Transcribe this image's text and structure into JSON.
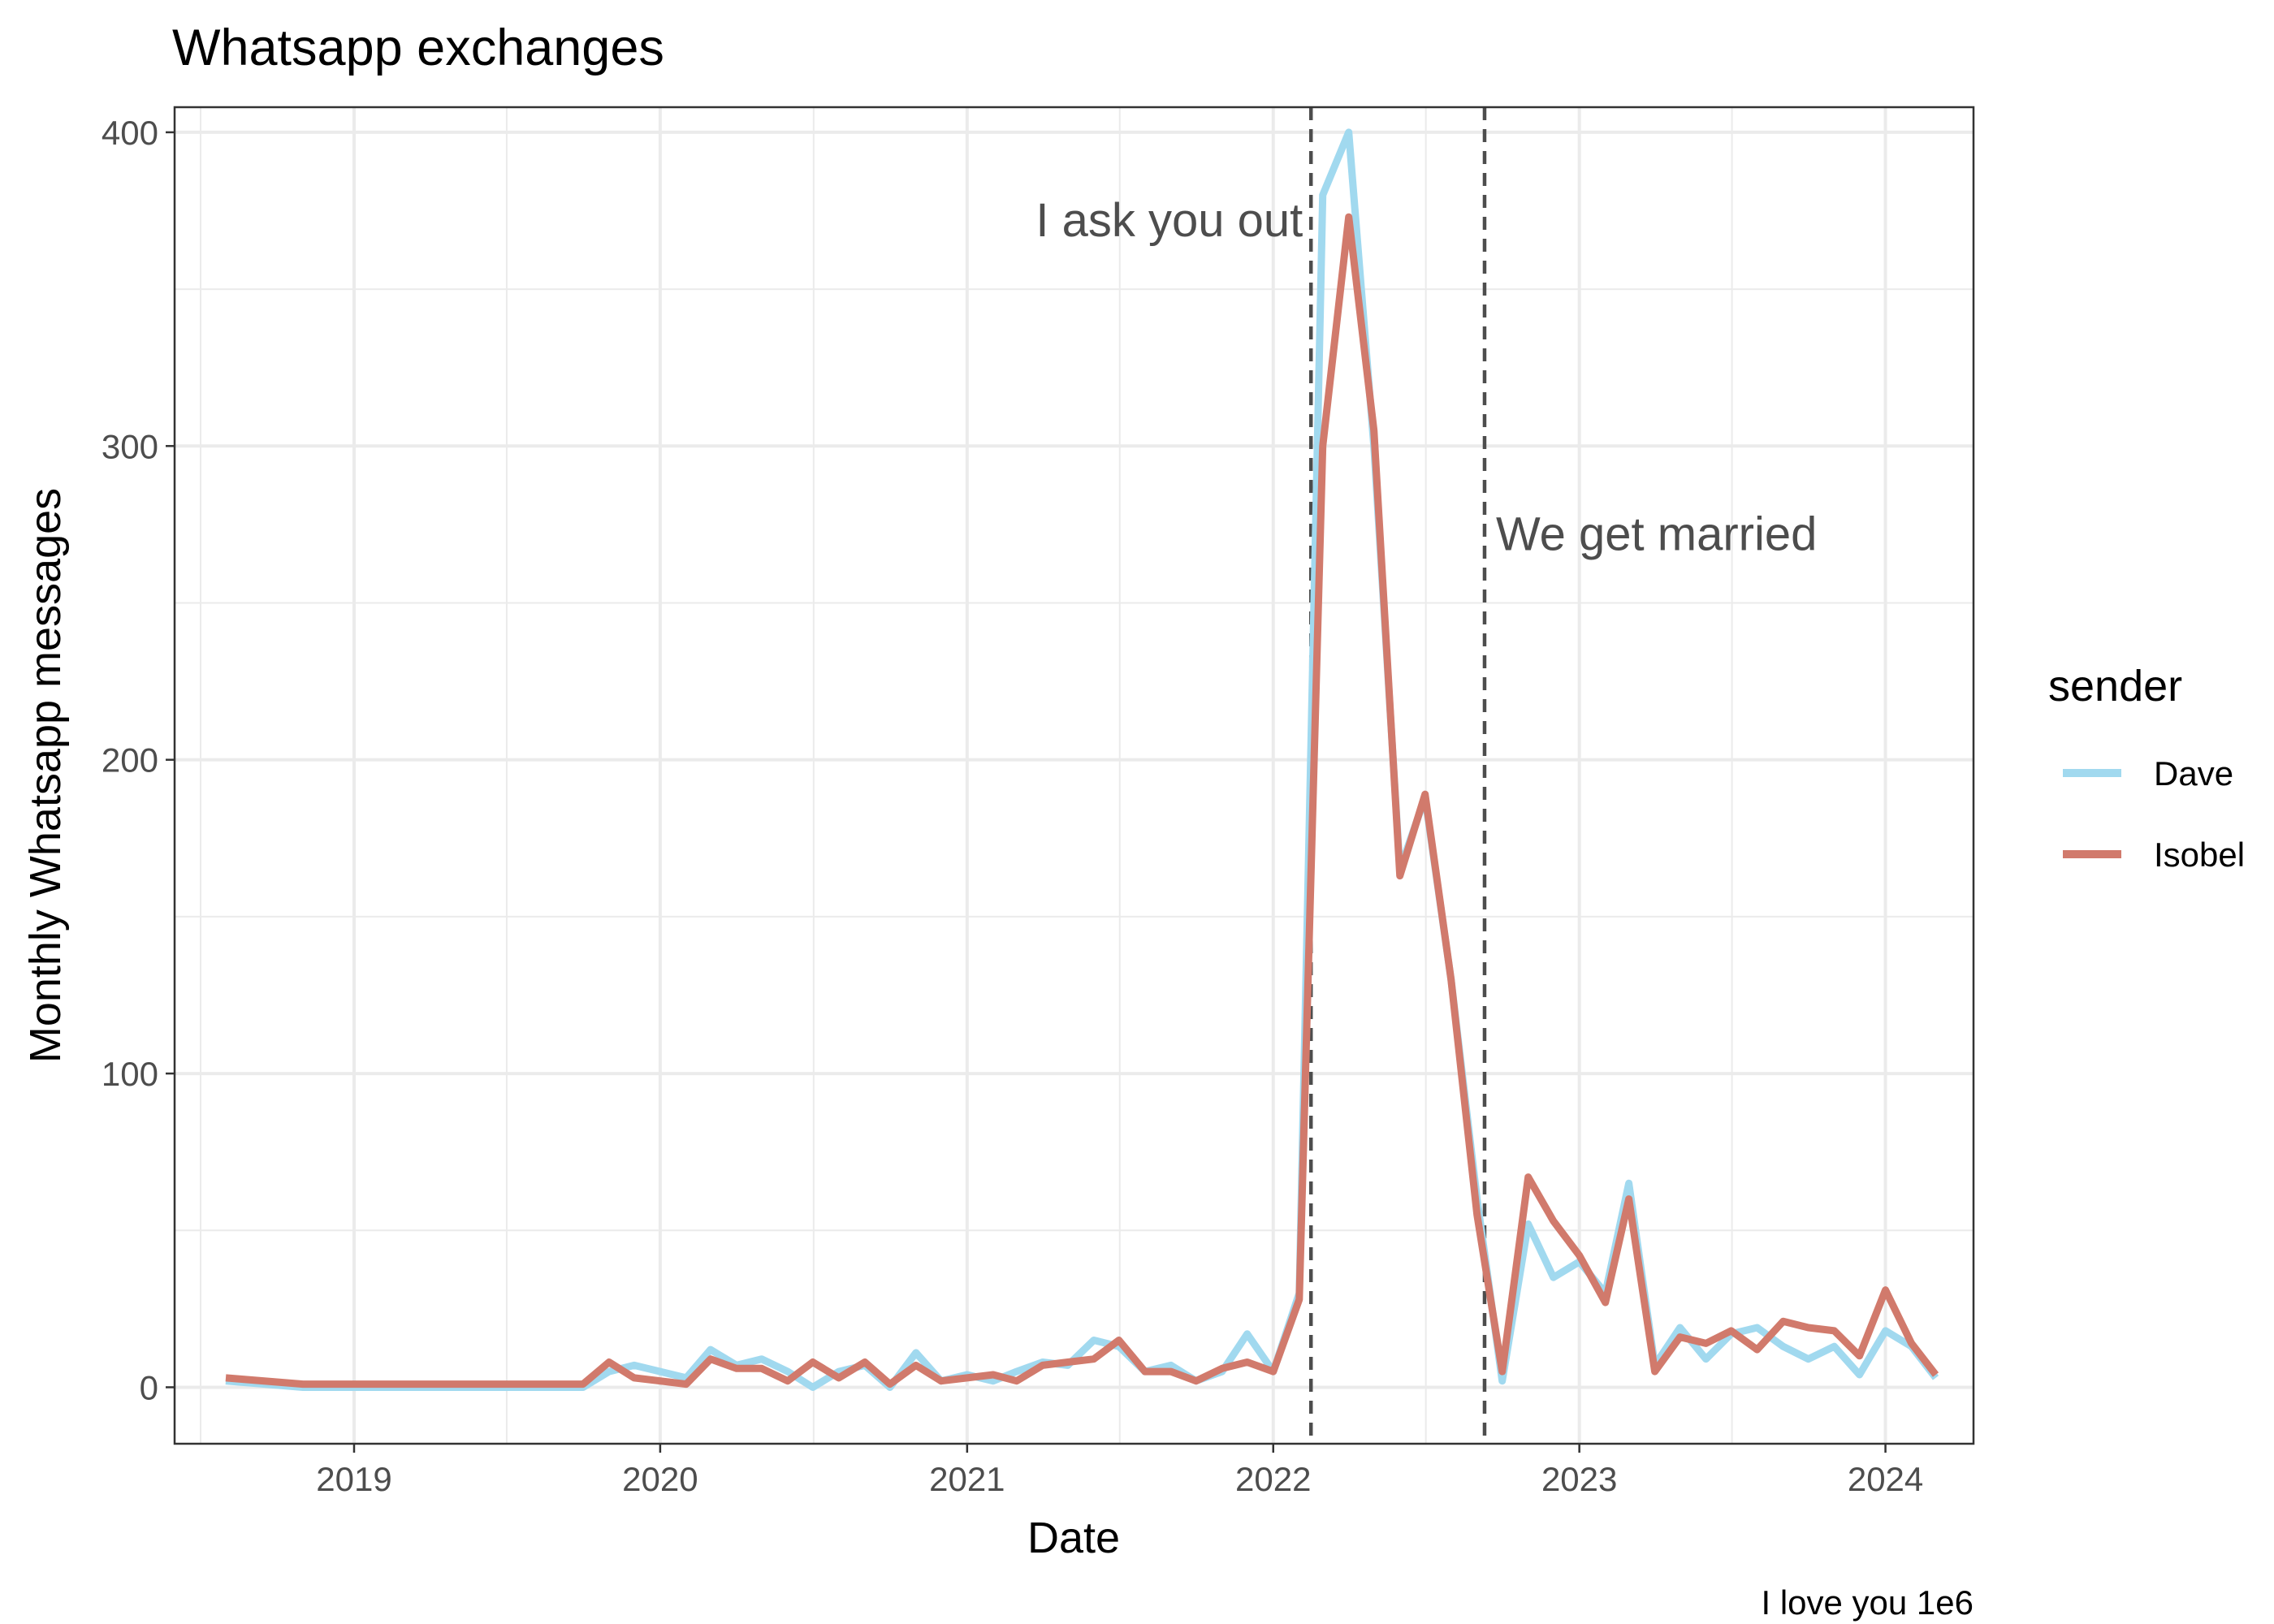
{
  "chart_data": {
    "type": "line",
    "title": "Whatsapp exchanges",
    "xlabel": "Date",
    "ylabel": "Monthly Whatsapp messages",
    "caption": "I love you 1e6",
    "xlim": [
      "2018-06-01",
      "2024-04-15"
    ],
    "ylim": [
      -18,
      408
    ],
    "x_ticks": [
      "2019",
      "2020",
      "2021",
      "2022",
      "2023",
      "2024"
    ],
    "y_ticks": [
      "0",
      "100",
      "200",
      "300",
      "400"
    ],
    "grid": true,
    "legend": {
      "title": "sender",
      "position": "right"
    },
    "x": [
      "2018-08-01",
      "2018-11-01",
      "2019-02-01",
      "2019-05-01",
      "2019-08-01",
      "2019-10-01",
      "2019-11-01",
      "2019-12-01",
      "2020-01-01",
      "2020-02-01",
      "2020-03-01",
      "2020-04-01",
      "2020-05-01",
      "2020-06-01",
      "2020-07-01",
      "2020-08-01",
      "2020-09-01",
      "2020-10-01",
      "2020-11-01",
      "2020-12-01",
      "2021-01-01",
      "2021-02-01",
      "2021-03-01",
      "2021-04-01",
      "2021-05-01",
      "2021-06-01",
      "2021-07-01",
      "2021-08-01",
      "2021-09-01",
      "2021-10-01",
      "2021-11-01",
      "2021-12-01",
      "2022-01-01",
      "2022-02-01",
      "2022-03-01",
      "2022-04-01",
      "2022-05-01",
      "2022-06-01",
      "2022-07-01",
      "2022-08-01",
      "2022-09-01",
      "2022-10-01",
      "2022-11-01",
      "2022-12-01",
      "2023-01-01",
      "2023-02-01",
      "2023-03-01",
      "2023-04-01",
      "2023-05-01",
      "2023-06-01",
      "2023-07-01",
      "2023-08-01",
      "2023-09-01",
      "2023-10-01",
      "2023-11-01",
      "2023-12-01",
      "2024-01-01",
      "2024-02-01",
      "2024-03-01"
    ],
    "series": [
      {
        "name": "Dave",
        "color": "#a1d9ef",
        "values": [
          2,
          0,
          0,
          0,
          0,
          0,
          5,
          7,
          5,
          3,
          12,
          7,
          9,
          5,
          0,
          5,
          7,
          0,
          11,
          2,
          4,
          2,
          5,
          8,
          7,
          15,
          13,
          5,
          7,
          2,
          5,
          17,
          5,
          30,
          380,
          400,
          300,
          165,
          188,
          130,
          60,
          2,
          52,
          35,
          40,
          30,
          65,
          7,
          19,
          9,
          17,
          19,
          13,
          9,
          13,
          4,
          18,
          13,
          3
        ]
      },
      {
        "name": "Isobel",
        "color": "#d17a6c",
        "values": [
          3,
          1,
          1,
          1,
          1,
          1,
          8,
          3,
          2,
          1,
          9,
          6,
          6,
          2,
          8,
          3,
          8,
          1,
          7,
          2,
          3,
          4,
          2,
          7,
          8,
          9,
          15,
          5,
          5,
          2,
          6,
          8,
          5,
          28,
          300,
          373,
          305,
          163,
          189,
          130,
          55,
          5,
          67,
          53,
          42,
          27,
          60,
          5,
          16,
          14,
          18,
          12,
          21,
          19,
          18,
          10,
          31,
          14,
          4
        ]
      }
    ],
    "vlines": [
      {
        "x": "2022-02-15",
        "label": "I ask you out",
        "label_y": 372,
        "label_anchor": "end"
      },
      {
        "x": "2022-09-10",
        "label": "We get married",
        "label_y": 272,
        "label_anchor": "start"
      }
    ]
  }
}
